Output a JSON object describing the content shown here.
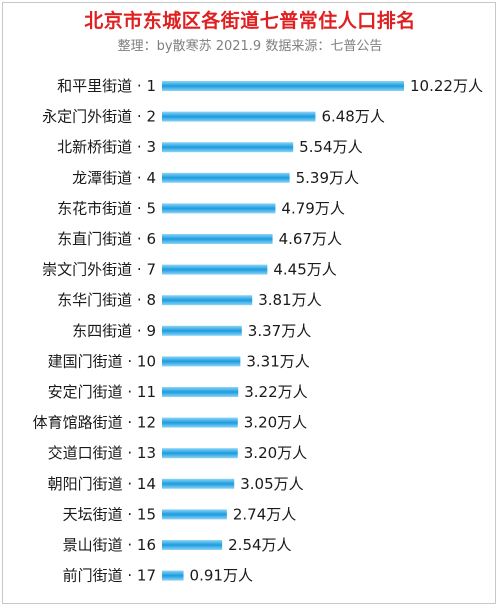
{
  "chart_data": {
    "type": "bar",
    "orientation": "horizontal",
    "title": "北京市东城区各街道七普常住人口排名",
    "subtitle": "整理：by散寒苏 2021.9 数据来源：七普公告",
    "categories": [
      "和平里街道 · 1",
      "永定门外街道 · 2",
      "北新桥街道 · 3",
      "龙潭街道 · 4",
      "东花市街道 · 5",
      "东直门街道 · 6",
      "崇文门外街道 · 7",
      "东华门街道 · 8",
      "东四街道 · 9",
      "建国门街道 · 10",
      "安定门街道 · 11",
      "体育馆路街道 · 12",
      "交道口街道 · 13",
      "朝阳门街道 · 14",
      "天坛街道 · 15",
      "景山街道 · 16",
      "前门街道 · 17"
    ],
    "values": [
      10.22,
      6.48,
      5.54,
      5.39,
      4.79,
      4.67,
      4.45,
      3.81,
      3.37,
      3.31,
      3.22,
      3.2,
      3.2,
      3.05,
      2.74,
      2.54,
      0.91
    ],
    "value_labels": [
      "10.22万人",
      "6.48万人",
      "5.54万人",
      "5.39万人",
      "4.79万人",
      "4.67万人",
      "4.45万人",
      "3.81万人",
      "3.37万人",
      "3.31万人",
      "3.22万人",
      "3.20万人",
      "3.20万人",
      "3.05万人",
      "2.74万人",
      "2.54万人",
      "0.91万人"
    ],
    "unit": "万人",
    "grid": false,
    "legend": "none",
    "colors": {
      "bar_dark": "#1a9ce0",
      "bar_light": "#8fd4f5",
      "title": "#e02020",
      "subtitle": "#808080"
    }
  }
}
